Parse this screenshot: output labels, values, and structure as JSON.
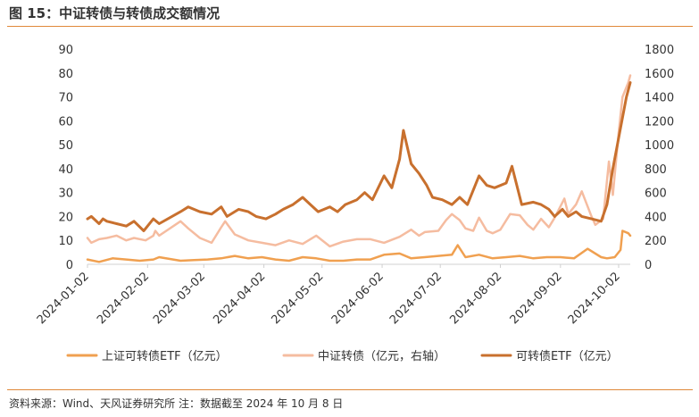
{
  "header": {
    "title": "图 15：中证转债与转债成交额情况"
  },
  "footer": {
    "source": "资料来源：Wind、天风证券研究所  注：数据截至 2024 年 10 月 8 日"
  },
  "chart_data": {
    "type": "line",
    "title": "",
    "xlabel": "",
    "ylabel": "",
    "x_ticks": [
      "2024-01-02",
      "2024-02-02",
      "2024-03-02",
      "2024-04-02",
      "2024-05-02",
      "2024-06-02",
      "2024-07-02",
      "2024-08-02",
      "2024-09-02",
      "2024-10-02"
    ],
    "y_left": {
      "min": 0,
      "max": 90,
      "ticks": [
        "0",
        "10",
        "20",
        "30",
        "40",
        "50",
        "60",
        "70",
        "80",
        "90"
      ]
    },
    "y_right": {
      "min": 0,
      "max": 1800,
      "ticks": [
        "0",
        "200",
        "400",
        "600",
        "800",
        "1000",
        "1200",
        "1400",
        "1600",
        "1800"
      ]
    },
    "grid": false,
    "legend_position": "bottom",
    "series": [
      {
        "name": "上证可转债ETF（亿元）",
        "axis": "left",
        "color": "#F0A050",
        "points": [
          [
            "2024-01-02",
            2
          ],
          [
            "2024-01-08",
            1
          ],
          [
            "2024-01-15",
            2.5
          ],
          [
            "2024-01-22",
            2
          ],
          [
            "2024-01-29",
            1.5
          ],
          [
            "2024-02-05",
            2
          ],
          [
            "2024-02-08",
            3
          ],
          [
            "2024-02-19",
            1.5
          ],
          [
            "2024-02-26",
            1.8
          ],
          [
            "2024-03-04",
            2
          ],
          [
            "2024-03-11",
            2.5
          ],
          [
            "2024-03-18",
            3.5
          ],
          [
            "2024-03-25",
            2.5
          ],
          [
            "2024-04-01",
            3
          ],
          [
            "2024-04-08",
            2
          ],
          [
            "2024-04-15",
            1.5
          ],
          [
            "2024-04-22",
            3
          ],
          [
            "2024-04-29",
            2.5
          ],
          [
            "2024-05-06",
            1.5
          ],
          [
            "2024-05-13",
            1.5
          ],
          [
            "2024-05-20",
            2
          ],
          [
            "2024-05-27",
            2
          ],
          [
            "2024-06-03",
            4
          ],
          [
            "2024-06-11",
            4.5
          ],
          [
            "2024-06-17",
            2.5
          ],
          [
            "2024-06-24",
            3
          ],
          [
            "2024-07-01",
            3.5
          ],
          [
            "2024-07-08",
            4
          ],
          [
            "2024-07-11",
            8
          ],
          [
            "2024-07-15",
            3
          ],
          [
            "2024-07-22",
            4
          ],
          [
            "2024-07-29",
            2.5
          ],
          [
            "2024-08-05",
            3
          ],
          [
            "2024-08-12",
            3.5
          ],
          [
            "2024-08-19",
            2.5
          ],
          [
            "2024-08-26",
            3
          ],
          [
            "2024-09-02",
            3
          ],
          [
            "2024-09-09",
            2.5
          ],
          [
            "2024-09-16",
            6.5
          ],
          [
            "2024-09-23",
            3
          ],
          [
            "2024-09-26",
            2.5
          ],
          [
            "2024-09-30",
            3
          ],
          [
            "2024-10-03",
            6
          ],
          [
            "2024-10-04",
            14
          ],
          [
            "2024-10-07",
            13
          ],
          [
            "2024-10-08",
            12
          ]
        ]
      },
      {
        "name": "中证转债（亿元，右轴）",
        "axis": "right",
        "color": "#F5BCA0",
        "points": [
          [
            "2024-01-02",
            220
          ],
          [
            "2024-01-04",
            180
          ],
          [
            "2024-01-08",
            210
          ],
          [
            "2024-01-12",
            220
          ],
          [
            "2024-01-17",
            240
          ],
          [
            "2024-01-22",
            200
          ],
          [
            "2024-01-26",
            220
          ],
          [
            "2024-02-01",
            200
          ],
          [
            "2024-02-05",
            240
          ],
          [
            "2024-02-06",
            280
          ],
          [
            "2024-02-08",
            240
          ],
          [
            "2024-02-19",
            360
          ],
          [
            "2024-02-23",
            300
          ],
          [
            "2024-02-29",
            220
          ],
          [
            "2024-03-06",
            180
          ],
          [
            "2024-03-11",
            310
          ],
          [
            "2024-03-13",
            360
          ],
          [
            "2024-03-18",
            250
          ],
          [
            "2024-03-25",
            200
          ],
          [
            "2024-04-01",
            180
          ],
          [
            "2024-04-08",
            160
          ],
          [
            "2024-04-15",
            200
          ],
          [
            "2024-04-22",
            170
          ],
          [
            "2024-04-29",
            240
          ],
          [
            "2024-05-06",
            150
          ],
          [
            "2024-05-13",
            190
          ],
          [
            "2024-05-20",
            210
          ],
          [
            "2024-05-27",
            210
          ],
          [
            "2024-06-03",
            180
          ],
          [
            "2024-06-11",
            230
          ],
          [
            "2024-06-17",
            290
          ],
          [
            "2024-06-21",
            240
          ],
          [
            "2024-06-24",
            270
          ],
          [
            "2024-07-01",
            280
          ],
          [
            "2024-07-05",
            370
          ],
          [
            "2024-07-08",
            420
          ],
          [
            "2024-07-12",
            370
          ],
          [
            "2024-07-15",
            300
          ],
          [
            "2024-07-19",
            280
          ],
          [
            "2024-07-22",
            390
          ],
          [
            "2024-07-26",
            280
          ],
          [
            "2024-07-29",
            260
          ],
          [
            "2024-08-02",
            290
          ],
          [
            "2024-08-07",
            420
          ],
          [
            "2024-08-12",
            410
          ],
          [
            "2024-08-16",
            330
          ],
          [
            "2024-08-19",
            290
          ],
          [
            "2024-08-23",
            380
          ],
          [
            "2024-08-27",
            310
          ],
          [
            "2024-08-30",
            390
          ],
          [
            "2024-09-04",
            550
          ],
          [
            "2024-09-06",
            420
          ],
          [
            "2024-09-10",
            500
          ],
          [
            "2024-09-13",
            610
          ],
          [
            "2024-09-18",
            400
          ],
          [
            "2024-09-20",
            330
          ],
          [
            "2024-09-24",
            380
          ],
          [
            "2024-09-27",
            860
          ],
          [
            "2024-09-29",
            580
          ],
          [
            "2024-10-02",
            1100
          ],
          [
            "2024-10-04",
            1400
          ],
          [
            "2024-10-07",
            1520
          ],
          [
            "2024-10-08",
            1580
          ]
        ]
      },
      {
        "name": "可转债ETF（亿元）",
        "axis": "left",
        "color": "#C8702E",
        "points": [
          [
            "2024-01-02",
            19
          ],
          [
            "2024-01-04",
            20
          ],
          [
            "2024-01-08",
            17
          ],
          [
            "2024-01-10",
            19
          ],
          [
            "2024-01-12",
            18
          ],
          [
            "2024-01-17",
            17
          ],
          [
            "2024-01-22",
            16
          ],
          [
            "2024-01-26",
            18
          ],
          [
            "2024-01-31",
            14
          ],
          [
            "2024-02-05",
            19
          ],
          [
            "2024-02-08",
            17
          ],
          [
            "2024-02-19",
            22
          ],
          [
            "2024-02-23",
            24
          ],
          [
            "2024-02-29",
            22
          ],
          [
            "2024-03-06",
            21
          ],
          [
            "2024-03-11",
            24
          ],
          [
            "2024-03-14",
            20
          ],
          [
            "2024-03-20",
            23
          ],
          [
            "2024-03-25",
            22
          ],
          [
            "2024-03-29",
            20
          ],
          [
            "2024-04-03",
            19
          ],
          [
            "2024-04-08",
            21
          ],
          [
            "2024-04-12",
            23
          ],
          [
            "2024-04-17",
            25
          ],
          [
            "2024-04-22",
            28
          ],
          [
            "2024-04-26",
            25
          ],
          [
            "2024-04-30",
            22
          ],
          [
            "2024-05-06",
            24
          ],
          [
            "2024-05-10",
            22
          ],
          [
            "2024-05-14",
            25
          ],
          [
            "2024-05-20",
            27
          ],
          [
            "2024-05-24",
            30
          ],
          [
            "2024-05-28",
            27
          ],
          [
            "2024-06-03",
            37
          ],
          [
            "2024-06-07",
            32
          ],
          [
            "2024-06-11",
            44
          ],
          [
            "2024-06-13",
            56
          ],
          [
            "2024-06-17",
            42
          ],
          [
            "2024-06-21",
            38
          ],
          [
            "2024-06-25",
            33
          ],
          [
            "2024-06-28",
            28
          ],
          [
            "2024-07-03",
            27
          ],
          [
            "2024-07-08",
            25
          ],
          [
            "2024-07-12",
            28
          ],
          [
            "2024-07-16",
            25
          ],
          [
            "2024-07-22",
            37
          ],
          [
            "2024-07-26",
            33
          ],
          [
            "2024-07-30",
            32
          ],
          [
            "2024-08-05",
            34
          ],
          [
            "2024-08-08",
            41
          ],
          [
            "2024-08-13",
            25
          ],
          [
            "2024-08-19",
            26
          ],
          [
            "2024-08-23",
            25
          ],
          [
            "2024-08-27",
            23
          ],
          [
            "2024-08-30",
            20
          ],
          [
            "2024-09-03",
            23
          ],
          [
            "2024-09-06",
            20
          ],
          [
            "2024-09-10",
            22
          ],
          [
            "2024-09-13",
            20
          ],
          [
            "2024-09-18",
            19
          ],
          [
            "2024-09-23",
            18
          ],
          [
            "2024-09-26",
            25
          ],
          [
            "2024-09-29",
            40
          ],
          [
            "2024-10-03",
            57
          ],
          [
            "2024-10-06",
            70
          ],
          [
            "2024-10-08",
            76
          ]
        ]
      }
    ]
  }
}
